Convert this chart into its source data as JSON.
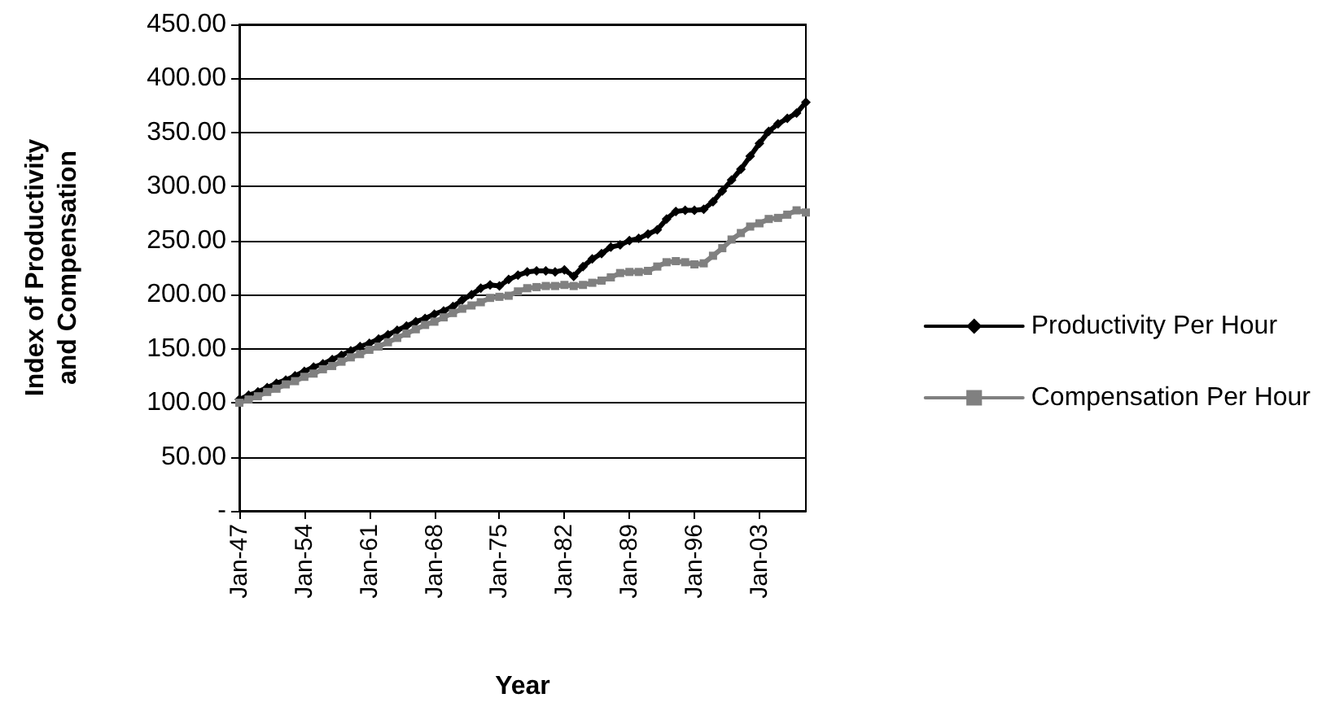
{
  "chart_data": {
    "type": "line",
    "xlabel": "Year",
    "ylabel": "Index of Productivity and Compensation",
    "categories": [
      "Jan-47",
      null,
      null,
      null,
      null,
      null,
      null,
      "Jan-54",
      null,
      null,
      null,
      null,
      null,
      null,
      "Jan-61",
      null,
      null,
      null,
      null,
      null,
      null,
      "Jan-68",
      null,
      null,
      null,
      null,
      null,
      null,
      "Jan-75",
      null,
      null,
      null,
      null,
      null,
      null,
      "Jan-82",
      null,
      null,
      null,
      null,
      null,
      null,
      "Jan-89",
      null,
      null,
      null,
      null,
      null,
      null,
      "Jan-96",
      null,
      null,
      null,
      null,
      null,
      null,
      "Jan-03",
      null,
      null,
      null,
      null,
      null
    ],
    "series": [
      {
        "name": "Productivity Per Hour",
        "color": "#000000",
        "marker": "diamond",
        "values": [
          103,
          107,
          110,
          114,
          118,
          121,
          125,
          129,
          133,
          136,
          140,
          144,
          148,
          152,
          155,
          159,
          163,
          167,
          171,
          175,
          178,
          182,
          185,
          189,
          195,
          200,
          206,
          209,
          208,
          214,
          218,
          221,
          222,
          222,
          221,
          223,
          217,
          226,
          233,
          238,
          244,
          246,
          250,
          252,
          256,
          260,
          270,
          277,
          278,
          278,
          279,
          286,
          296,
          306,
          316,
          328,
          340,
          351,
          358,
          363,
          368,
          378
        ]
      },
      {
        "name": "Compensation Per Hour",
        "color": "#808080",
        "marker": "square",
        "values": [
          100,
          103,
          106,
          110,
          113,
          117,
          120,
          124,
          127,
          131,
          134,
          138,
          142,
          145,
          149,
          152,
          156,
          160,
          164,
          168,
          172,
          175,
          179,
          183,
          187,
          190,
          193,
          197,
          198,
          199,
          203,
          206,
          207,
          208,
          208,
          209,
          208,
          209,
          211,
          213,
          216,
          220,
          221,
          221,
          222,
          226,
          230,
          231,
          230,
          228,
          229,
          236,
          243,
          251,
          257,
          263,
          266,
          270,
          271,
          274,
          278,
          276
        ]
      }
    ],
    "ylim": [
      0,
      450
    ],
    "yticks": [
      {
        "value": 0,
        "label": "-"
      },
      {
        "value": 50,
        "label": "50.00"
      },
      {
        "value": 100,
        "label": "100.00"
      },
      {
        "value": 150,
        "label": "150.00"
      },
      {
        "value": 200,
        "label": "200.00"
      },
      {
        "value": 250,
        "label": "250.00"
      },
      {
        "value": 300,
        "label": "300.00"
      },
      {
        "value": 350,
        "label": "350.00"
      },
      {
        "value": 400,
        "label": "400.00"
      },
      {
        "value": 450,
        "label": "450.00"
      }
    ],
    "grid": "y",
    "legend": "right",
    "line_style": "solid"
  }
}
